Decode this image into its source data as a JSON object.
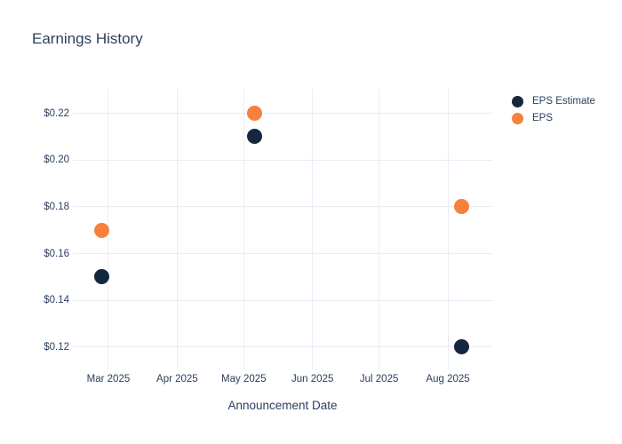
{
  "colors": {
    "background": "#ffffff",
    "text": "#2a3f5f",
    "grid": "#e9edf4",
    "eps_estimate": "#15273f",
    "eps": "#f5813d"
  },
  "chart_data": {
    "type": "scatter",
    "title": "Earnings History",
    "xlabel": "Announcement Date",
    "ylabel": "",
    "grid": true,
    "legend_position": "outside-top-right",
    "x_dates": [
      "2025-02-26",
      "2025-05-06",
      "2025-08-07"
    ],
    "x_days_from_2025_jan1": [
      57,
      126,
      219
    ],
    "series": [
      {
        "name": "EPS Estimate",
        "color": "#15273f",
        "values": [
          0.15,
          0.21,
          0.12
        ]
      },
      {
        "name": "EPS",
        "color": "#f5813d",
        "values": [
          0.17,
          0.22,
          0.18
        ]
      }
    ],
    "xaxis": {
      "range_days": [
        44,
        233
      ],
      "tick_days": [
        60,
        91,
        121,
        152,
        182,
        213
      ],
      "tick_labels": [
        "Mar 2025",
        "Apr 2025",
        "May 2025",
        "Jun 2025",
        "Jul 2025",
        "Aug 2025"
      ]
    },
    "yaxis": {
      "range": [
        0.1105,
        0.2305
      ],
      "tick_values": [
        0.12,
        0.14,
        0.16,
        0.18,
        0.2,
        0.22
      ],
      "tick_labels": [
        "$0.12",
        "$0.14",
        "$0.16",
        "$0.18",
        "$0.20",
        "$0.22"
      ]
    }
  }
}
